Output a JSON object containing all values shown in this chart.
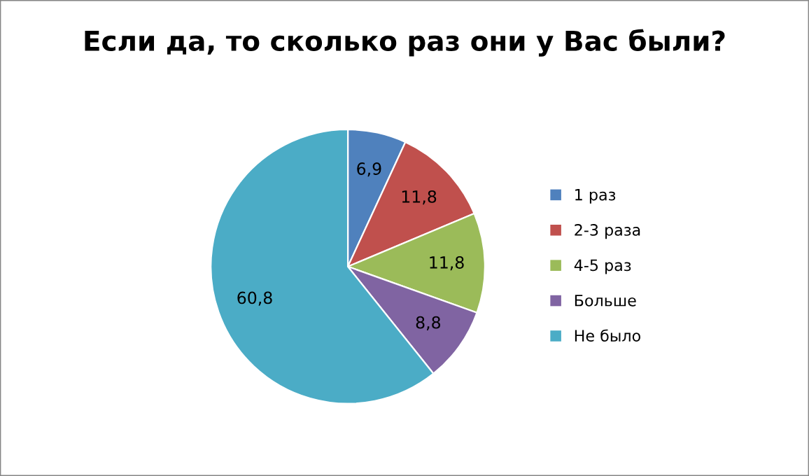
{
  "chart_data": {
    "type": "pie",
    "title": "Если да, то сколько раз они у Вас были?",
    "categories": [
      "1 раз",
      "2-3 раза",
      "4-5 раз",
      "Больше",
      "Не было"
    ],
    "values": [
      6.9,
      11.8,
      11.8,
      8.8,
      60.8
    ],
    "value_labels": [
      "6,9",
      "11,8",
      "11,8",
      "8,8",
      "60,8"
    ],
    "colors": [
      "#4f81bd",
      "#c0504d",
      "#9bbb59",
      "#8064a2",
      "#4bacc6"
    ],
    "legend": "right"
  }
}
